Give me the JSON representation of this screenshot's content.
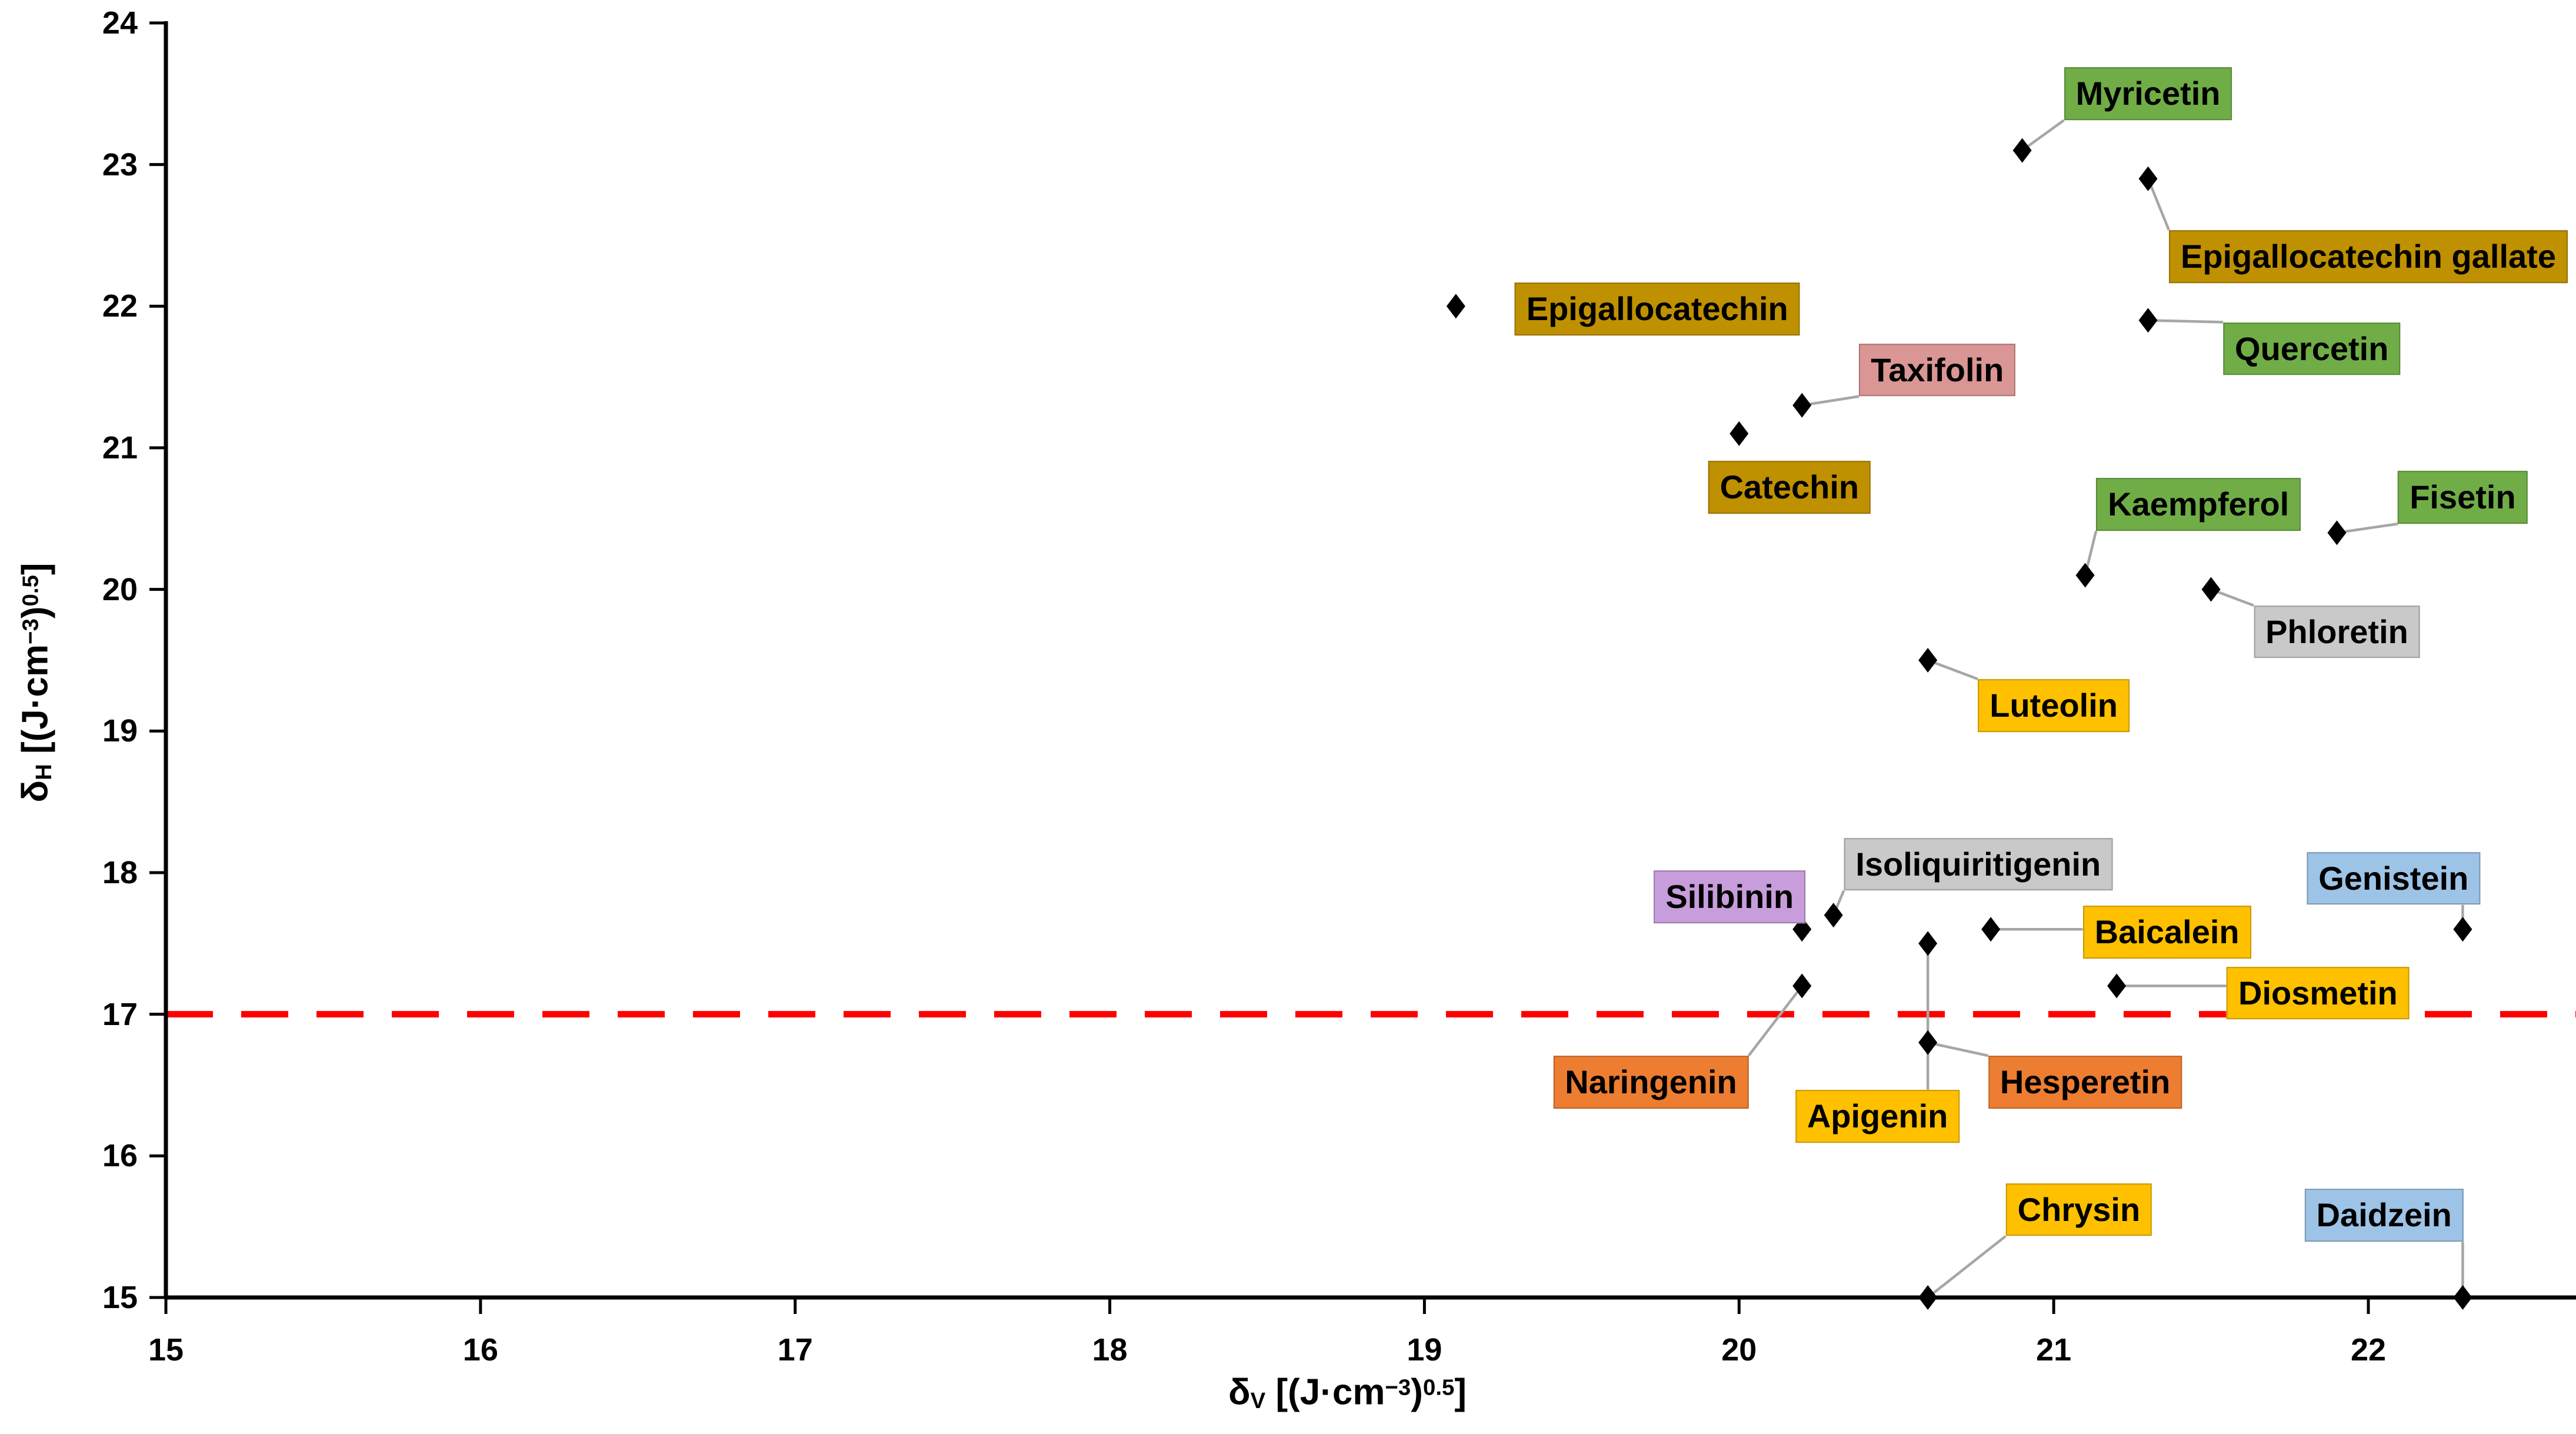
{
  "chart_data": {
    "type": "scatter",
    "title": "",
    "xlabel": "δV [(J·cm−3)0.5]",
    "ylabel": "δH [(J·cm−3)0.5]",
    "xlabel_parts": [
      {
        "t": "δ"
      },
      {
        "sub": "V"
      },
      {
        "t": " [(J·cm"
      },
      {
        "sup": "−3"
      },
      {
        "t": ")"
      },
      {
        "sup": "0.5"
      },
      {
        "t": "]"
      }
    ],
    "ylabel_parts": [
      {
        "t": "δ"
      },
      {
        "sub": "H"
      },
      {
        "t": " [(J·cm"
      },
      {
        "sup": "−3"
      },
      {
        "t": ")"
      },
      {
        "sup": "0.5"
      },
      {
        "t": "]"
      }
    ],
    "x_ticks": [
      15,
      16,
      17,
      18,
      19,
      20,
      21,
      22
    ],
    "y_ticks": [
      15,
      16,
      17,
      18,
      19,
      20,
      21,
      22,
      23,
      24
    ],
    "xlim": [
      15,
      22.66
    ],
    "ylim": [
      15,
      24
    ],
    "grid": false,
    "legend": "none",
    "threshold_line": {
      "y": 17,
      "color": "#FF0000",
      "style": "dashed"
    },
    "marker": {
      "shape": "diamond",
      "color": "#000000"
    },
    "points": [
      {
        "name": "Myricetin",
        "x": 20.9,
        "y": 23.1,
        "label_x": 21.3,
        "label_y": 23.5,
        "fill": "#70AD47",
        "leader": true
      },
      {
        "name": "Epigallocatechin gallate",
        "x": 21.3,
        "y": 22.9,
        "label_x": 22.0,
        "label_y": 22.35,
        "fill": "#BF9000",
        "leader": true
      },
      {
        "name": "Epigallocatechin",
        "x": 19.1,
        "y": 22.0,
        "label_x": 19.74,
        "label_y": 21.98,
        "fill": "#BF9000",
        "leader": false
      },
      {
        "name": "Quercetin",
        "x": 21.3,
        "y": 21.9,
        "label_x": 21.82,
        "label_y": 21.7,
        "fill": "#70AD47",
        "leader": true
      },
      {
        "name": "Taxifolin",
        "x": 20.2,
        "y": 21.3,
        "label_x": 20.63,
        "label_y": 21.55,
        "fill": "#D99694",
        "leader": true
      },
      {
        "name": "Catechin",
        "x": 20.0,
        "y": 21.1,
        "label_x": 20.16,
        "label_y": 20.72,
        "fill": "#BF9000",
        "leader": false
      },
      {
        "name": "Kaempferol",
        "x": 21.1,
        "y": 20.1,
        "label_x": 21.46,
        "label_y": 20.6,
        "fill": "#70AD47",
        "leader": true
      },
      {
        "name": "Fisetin",
        "x": 21.9,
        "y": 20.4,
        "label_x": 22.3,
        "label_y": 20.65,
        "fill": "#70AD47",
        "leader": true
      },
      {
        "name": "Phloretin",
        "x": 21.5,
        "y": 20.0,
        "label_x": 21.9,
        "label_y": 19.7,
        "fill": "#C9C9C9",
        "leader": true
      },
      {
        "name": "Luteolin",
        "x": 20.6,
        "y": 19.5,
        "label_x": 21.0,
        "label_y": 19.18,
        "fill": "#FFC000",
        "leader": true
      },
      {
        "name": "Isoliquiritigenin",
        "x": 20.3,
        "y": 17.7,
        "label_x": 20.76,
        "label_y": 18.06,
        "fill": "#C9C9C9",
        "leader": true
      },
      {
        "name": "Silibinin",
        "x": 20.2,
        "y": 17.6,
        "label_x": 19.97,
        "label_y": 17.83,
        "fill": "#C79DDC",
        "leader": true
      },
      {
        "name": "Baicalein",
        "x": 20.8,
        "y": 17.6,
        "label_x": 21.36,
        "label_y": 17.58,
        "fill": "#FFC000",
        "leader": true
      },
      {
        "name": "Genistein",
        "x": 22.3,
        "y": 17.6,
        "label_x": 22.08,
        "label_y": 17.96,
        "fill": "#9DC3E6",
        "leader": true
      },
      {
        "name": "Diosmetin",
        "x": 21.2,
        "y": 17.2,
        "label_x": 21.84,
        "label_y": 17.15,
        "fill": "#FFC000",
        "leader": true
      },
      {
        "name": "Naringenin",
        "x": 20.2,
        "y": 17.2,
        "label_x": 19.72,
        "label_y": 16.52,
        "fill": "#ED7D31",
        "leader": true
      },
      {
        "name": "Apigenin",
        "x": 20.6,
        "y": 17.5,
        "label_x": 20.44,
        "label_y": 16.28,
        "fill": "#FFC000",
        "leader": true
      },
      {
        "name": "Hesperetin",
        "x": 20.6,
        "y": 16.8,
        "label_x": 21.1,
        "label_y": 16.52,
        "fill": "#ED7D31",
        "leader": true
      },
      {
        "name": "Chrysin",
        "x": 20.6,
        "y": 15.0,
        "label_x": 21.08,
        "label_y": 15.62,
        "fill": "#FFC000",
        "leader": true
      },
      {
        "name": "Daidzein",
        "x": 22.3,
        "y": 15.0,
        "label_x": 22.05,
        "label_y": 15.58,
        "fill": "#9DC3E6",
        "leader": true
      }
    ],
    "colors": {
      "axis": "#000000",
      "tick_text": "#000000",
      "leader_line": "#A6A6A6",
      "threshold": "#FF0000",
      "marker": "#000000",
      "label_text": "#000000",
      "background": "#FFFFFF"
    }
  }
}
